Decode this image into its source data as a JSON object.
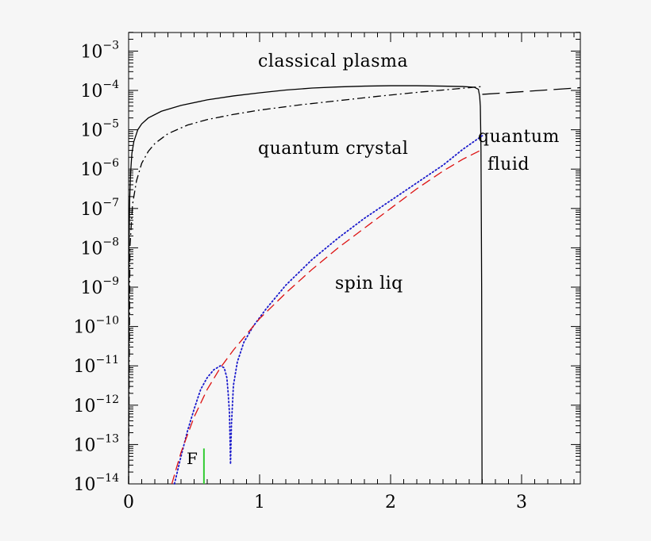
{
  "chart_data": {
    "type": "line",
    "title": "",
    "xlabel": "",
    "ylabel": "",
    "xlim": [
      0,
      3.45
    ],
    "ylim_log10": [
      -14,
      -2.5
    ],
    "y_scale": "log",
    "grid": false,
    "x_ticks": [
      {
        "value": 0,
        "label": "0"
      },
      {
        "value": 1,
        "label": "1"
      },
      {
        "value": 2,
        "label": "2"
      },
      {
        "value": 3,
        "label": "3"
      }
    ],
    "y_ticks": [
      {
        "exp": -3,
        "base": "10",
        "sup": "−3"
      },
      {
        "exp": -4,
        "base": "10",
        "sup": "−4"
      },
      {
        "exp": -5,
        "base": "10",
        "sup": "−5"
      },
      {
        "exp": -6,
        "base": "10",
        "sup": "−6"
      },
      {
        "exp": -7,
        "base": "10",
        "sup": "−7"
      },
      {
        "exp": -8,
        "base": "10",
        "sup": "−8"
      },
      {
        "exp": -9,
        "base": "10",
        "sup": "−9"
      },
      {
        "exp": -10,
        "base": "10",
        "sup": "−10"
      },
      {
        "exp": -11,
        "base": "10",
        "sup": "−11"
      },
      {
        "exp": -12,
        "base": "10",
        "sup": "−12"
      },
      {
        "exp": -13,
        "base": "10",
        "sup": "−13"
      },
      {
        "exp": -14,
        "base": "10",
        "sup": "−14"
      }
    ],
    "annotations": {
      "classical_plasma": "classical plasma",
      "quantum_crystal": "quantum crystal",
      "quantum_fluid_line1": "quantum",
      "quantum_fluid_line2": "fluid",
      "spin_liq": "spin liq",
      "F": "F"
    },
    "series": [
      {
        "style": "solid",
        "color": "#000000",
        "points": [
          [
            0.0,
            -14
          ],
          [
            0.003,
            -8.0
          ],
          [
            0.008,
            -6.8
          ],
          [
            0.015,
            -6.1
          ],
          [
            0.025,
            -5.6
          ],
          [
            0.04,
            -5.3
          ],
          [
            0.07,
            -5.0
          ],
          [
            0.1,
            -4.85
          ],
          [
            0.15,
            -4.7
          ],
          [
            0.25,
            -4.53
          ],
          [
            0.4,
            -4.38
          ],
          [
            0.6,
            -4.24
          ],
          [
            0.8,
            -4.14
          ],
          [
            1.0,
            -4.06
          ],
          [
            1.2,
            -3.99
          ],
          [
            1.4,
            -3.94
          ],
          [
            1.6,
            -3.91
          ],
          [
            1.8,
            -3.89
          ],
          [
            2.0,
            -3.88
          ],
          [
            2.2,
            -3.88
          ],
          [
            2.4,
            -3.89
          ],
          [
            2.55,
            -3.9
          ],
          [
            2.64,
            -3.92
          ],
          [
            2.67,
            -3.97
          ],
          [
            2.68,
            -4.15
          ],
          [
            2.685,
            -4.4
          ],
          [
            2.69,
            -5.5
          ],
          [
            2.695,
            -9.0
          ],
          [
            2.698,
            -14
          ]
        ]
      },
      {
        "style": "dashdot",
        "color": "#000000",
        "points": [
          [
            0.0,
            -14
          ],
          [
            0.01,
            -8.0
          ],
          [
            0.03,
            -6.9
          ],
          [
            0.06,
            -6.3
          ],
          [
            0.1,
            -5.85
          ],
          [
            0.15,
            -5.55
          ],
          [
            0.2,
            -5.35
          ],
          [
            0.3,
            -5.1
          ],
          [
            0.45,
            -4.88
          ],
          [
            0.6,
            -4.74
          ],
          [
            0.8,
            -4.61
          ],
          [
            1.0,
            -4.5
          ],
          [
            1.3,
            -4.37
          ],
          [
            1.6,
            -4.26
          ],
          [
            1.9,
            -4.15
          ],
          [
            2.2,
            -4.05
          ],
          [
            2.5,
            -3.96
          ],
          [
            2.7,
            -3.9
          ]
        ]
      },
      {
        "style": "longdash",
        "color": "#000000",
        "points": [
          [
            2.7,
            -4.1
          ],
          [
            3.45,
            -3.93
          ]
        ]
      },
      {
        "style": "dotted",
        "color": "#1a1acc",
        "points": [
          [
            0.35,
            -14
          ],
          [
            0.4,
            -13.3
          ],
          [
            0.45,
            -12.65
          ],
          [
            0.5,
            -12.1
          ],
          [
            0.55,
            -11.6
          ],
          [
            0.6,
            -11.3
          ],
          [
            0.65,
            -11.1
          ],
          [
            0.7,
            -11.0
          ],
          [
            0.73,
            -11.05
          ],
          [
            0.75,
            -11.3
          ],
          [
            0.76,
            -11.7
          ],
          [
            0.77,
            -12.2
          ],
          [
            0.775,
            -13.0
          ],
          [
            0.778,
            -13.5
          ],
          [
            0.785,
            -12.5
          ],
          [
            0.8,
            -11.5
          ],
          [
            0.83,
            -10.9
          ],
          [
            0.88,
            -10.4
          ],
          [
            0.95,
            -10.0
          ],
          [
            1.05,
            -9.55
          ],
          [
            1.2,
            -8.95
          ],
          [
            1.4,
            -8.3
          ],
          [
            1.6,
            -7.75
          ],
          [
            1.8,
            -7.25
          ],
          [
            2.0,
            -6.8
          ],
          [
            2.2,
            -6.35
          ],
          [
            2.4,
            -5.9
          ],
          [
            2.55,
            -5.5
          ],
          [
            2.7,
            -5.15
          ]
        ]
      },
      {
        "style": "dashed",
        "color": "#dd1111",
        "points": [
          [
            0.33,
            -14
          ],
          [
            0.4,
            -13.2
          ],
          [
            0.5,
            -12.3
          ],
          [
            0.6,
            -11.6
          ],
          [
            0.7,
            -11.05
          ],
          [
            0.8,
            -10.6
          ],
          [
            0.9,
            -10.2
          ],
          [
            1.0,
            -9.8
          ],
          [
            1.2,
            -9.15
          ],
          [
            1.4,
            -8.55
          ],
          [
            1.6,
            -8.0
          ],
          [
            1.8,
            -7.5
          ],
          [
            2.0,
            -7.0
          ],
          [
            2.2,
            -6.5
          ],
          [
            2.4,
            -6.05
          ],
          [
            2.55,
            -5.75
          ],
          [
            2.7,
            -5.5
          ]
        ]
      },
      {
        "style": "solid",
        "color": "#33cc33",
        "points": [
          [
            0.575,
            -14
          ],
          [
            0.575,
            -13.1
          ]
        ]
      }
    ]
  }
}
